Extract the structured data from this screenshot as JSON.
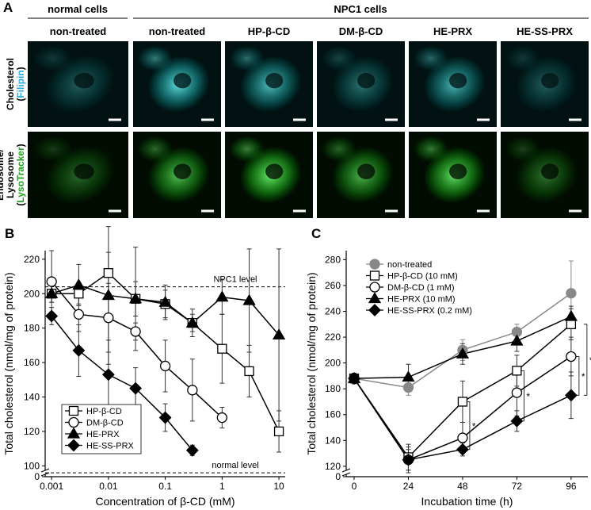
{
  "panel_a": {
    "label": "A",
    "group_headers": [
      "normal cells",
      "NPC1 cells"
    ],
    "column_headers": [
      "non-treated",
      "non-treated",
      "HP-β-CD",
      "DM-β-CD",
      "HE-PRX",
      "HE-SS-PRX"
    ],
    "row_labels": [
      {
        "lines": [
          "Cholesterol"
        ],
        "stain_line": [
          "(",
          "Filipin",
          ")"
        ],
        "stain_color": "#29a8e0"
      },
      {
        "lines": [
          "Endosome/",
          "Lysosome"
        ],
        "stain_line": [
          "(",
          "LysoTracker",
          ")"
        ],
        "stain_color": "#1e9e1e"
      }
    ]
  },
  "chart_data": [
    {
      "type": "line",
      "panel_label": "B",
      "x_label": "Concentration of β-CD (mM)",
      "y_label": "Total cholesterol (nmol/mg of protein)",
      "x": [
        0.001,
        0.003,
        0.01,
        0.03,
        0.1,
        0.3,
        1,
        3,
        10
      ],
      "xlim": [
        0.00077,
        12.9
      ],
      "log_x": true,
      "xticks": [
        0.001,
        0.01,
        0.1,
        1,
        10
      ],
      "ylim": [
        0,
        225
      ],
      "axis_break": [
        0,
        96
      ],
      "yticks": [
        0,
        100,
        120,
        140,
        160,
        180,
        200,
        220
      ],
      "legend": "lower left",
      "legend_box": true,
      "series": [
        {
          "name": "HP-β-CD",
          "color": "#000000",
          "marker": "square",
          "filled": false,
          "values": [
            200,
            200,
            212,
            197,
            194,
            183,
            168,
            155,
            120
          ],
          "errors": [
            5,
            6,
            12,
            10,
            8,
            8,
            20,
            15,
            12
          ]
        },
        {
          "name": "DM-β-CD",
          "color": "#000000",
          "marker": "circle",
          "filled": false,
          "values": [
            207,
            188,
            186,
            178,
            158,
            144,
            128,
            null,
            null
          ],
          "errors": [
            18,
            10,
            20,
            5,
            15,
            18,
            6,
            null,
            null
          ]
        },
        {
          "name": "HE-PRX",
          "color": "#000000",
          "marker": "triangle",
          "filled": true,
          "values": [
            200,
            205,
            199,
            197,
            195,
            183,
            198,
            196,
            176
          ],
          "errors": [
            5,
            12,
            40,
            30,
            10,
            5,
            10,
            30,
            50
          ]
        },
        {
          "name": "HE-SS-PRX",
          "color": "#000000",
          "marker": "diamond",
          "filled": true,
          "values": [
            187,
            167,
            153,
            145,
            128,
            109,
            null,
            null,
            null
          ],
          "errors": [
            5,
            15,
            20,
            12,
            8,
            3,
            null,
            null,
            null
          ]
        }
      ],
      "reference_lines": [
        {
          "label": "NPC1 level",
          "value": 204
        },
        {
          "label": "normal level",
          "value": 94
        }
      ]
    },
    {
      "type": "line",
      "panel_label": "C",
      "x_label": "Incubation time (h)",
      "y_label": "Total cholesterol (nmol/mg of protein)",
      "x": [
        0,
        24,
        48,
        72,
        96
      ],
      "xlim": [
        -3.5,
        103.4
      ],
      "xticks": [
        0,
        24,
        48,
        72,
        96
      ],
      "ylim": [
        0,
        287
      ],
      "axis_break": [
        0,
        115
      ],
      "yticks": [
        0,
        120,
        140,
        160,
        180,
        200,
        220,
        240,
        260,
        280
      ],
      "legend": "upper left",
      "legend_box": false,
      "series": [
        {
          "name": "non-treated",
          "color": "#888888",
          "marker": "circle",
          "filled": true,
          "values": [
            188,
            181,
            210,
            224,
            254
          ],
          "errors": [
            4,
            6,
            8,
            6,
            25
          ]
        },
        {
          "name": "HP-β-CD (10 mM)",
          "color": "#000000",
          "marker": "square",
          "filled": false,
          "values": [
            188,
            127,
            170,
            194,
            230
          ],
          "errors": [
            4,
            10,
            16,
            12,
            12
          ]
        },
        {
          "name": "DM-β-CD (1 mM)",
          "color": "#000000",
          "marker": "circle",
          "filled": false,
          "values": [
            188,
            125,
            142,
            177,
            205
          ],
          "errors": [
            4,
            10,
            12,
            18,
            15
          ]
        },
        {
          "name": "HE-PRX (10 mM)",
          "color": "#000000",
          "marker": "triangle",
          "filled": true,
          "values": [
            188,
            189,
            207,
            217,
            236
          ],
          "errors": [
            4,
            10,
            8,
            8,
            8
          ]
        },
        {
          "name": "HE-SS-PRX (0.2 mM)",
          "color": "#000000",
          "marker": "diamond",
          "filled": true,
          "values": [
            188,
            125,
            133,
            155,
            175
          ],
          "errors": [
            4,
            8,
            5,
            8,
            18
          ]
        }
      ],
      "annotations": [
        "*",
        "*",
        "*",
        "**"
      ]
    }
  ]
}
